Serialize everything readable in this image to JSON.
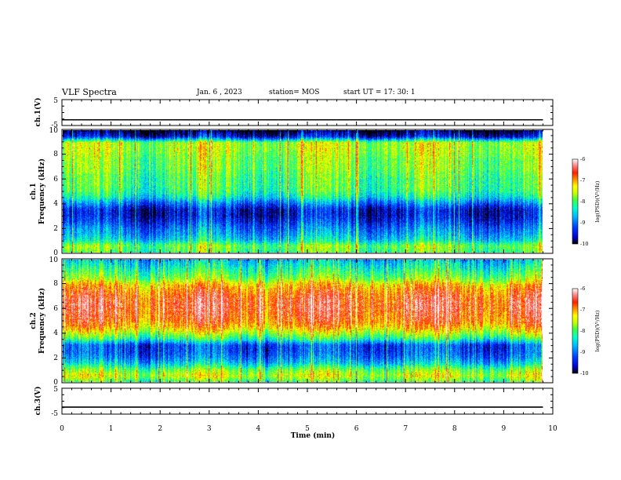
{
  "header": {
    "title": "VLF Spectra",
    "date": "Jan. 6 , 2023",
    "station": "station= MOS",
    "start_ut": "start  UT =   17: 30: 1"
  },
  "chart_data": [
    {
      "type": "line",
      "panel": "ch1-waveform",
      "ylabel": "ch.1(V)",
      "ylim": [
        -5,
        5
      ],
      "yticks": [
        "5",
        "-5"
      ],
      "x": [
        0,
        9.8
      ],
      "values": [
        -2.8,
        -2.8
      ],
      "line_color": "#000000"
    },
    {
      "type": "heatmap",
      "panel": "ch1-spectrogram",
      "ylabel": "ch.1\nFrequency (kHz)",
      "ylim": [
        0,
        10
      ],
      "yticks": [
        "0",
        "2",
        "4",
        "6",
        "8",
        "10"
      ],
      "xlim": [
        0,
        9.8
      ],
      "profile_freq_khz": [
        0,
        0.5,
        1,
        1.5,
        2,
        2.5,
        3,
        3.5,
        4,
        4.5,
        5,
        5.5,
        6,
        6.5,
        7,
        7.5,
        8,
        8.5,
        9,
        9.5,
        10
      ],
      "profile_log_psd": [
        -8,
        -7.8,
        -8.5,
        -8.8,
        -9,
        -9.3,
        -9.5,
        -9.5,
        -9,
        -8.4,
        -8.1,
        -8,
        -8,
        -7.9,
        -7.8,
        -7.8,
        -7.7,
        -7.6,
        -7.6,
        -9.5,
        -10
      ],
      "colorbar": {
        "label": "log(PSD)(V²/Hz)",
        "ticks": [
          "-6",
          "-7",
          "-8",
          "-9",
          "-10"
        ],
        "range": [
          -10,
          -6
        ]
      }
    },
    {
      "type": "heatmap",
      "panel": "ch2-spectrogram",
      "ylabel": "ch.2\nFrequency (kHz)",
      "ylim": [
        0,
        10
      ],
      "yticks": [
        "0",
        "2",
        "4",
        "6",
        "8",
        "10"
      ],
      "xlim": [
        0,
        9.8
      ],
      "profile_freq_khz": [
        0,
        0.5,
        1,
        1.5,
        2,
        2.5,
        3,
        3.5,
        4,
        4.5,
        5,
        5.5,
        6,
        6.5,
        7,
        7.5,
        8,
        8.5,
        9,
        9.5,
        10
      ],
      "profile_log_psd": [
        -8,
        -7.5,
        -7.9,
        -8.6,
        -9,
        -9.2,
        -9.2,
        -8.2,
        -7.6,
        -7.1,
        -6.8,
        -6.7,
        -6.6,
        -6.6,
        -6.7,
        -6.9,
        -7.2,
        -7.8,
        -8.1,
        -8.4,
        -8.7
      ],
      "colorbar": {
        "label": "log(PSD)(V²/Hz)",
        "ticks": [
          "-6",
          "-7",
          "-8",
          "-9",
          "-10"
        ],
        "range": [
          -10,
          -6
        ]
      }
    },
    {
      "type": "line",
      "panel": "ch3-waveform",
      "ylabel": "ch.3(V)",
      "ylim": [
        -5,
        5
      ],
      "yticks": [
        "5",
        "-5"
      ],
      "x": [
        0,
        9.8
      ],
      "values": [
        -2.3,
        -2.3
      ],
      "line_color": "#000000",
      "xlabel": "Time  (min)",
      "xlim": [
        0,
        10
      ],
      "xticks": [
        "0",
        "1",
        "2",
        "3",
        "4",
        "5",
        "6",
        "7",
        "8",
        "9",
        "10"
      ]
    }
  ],
  "colors": {
    "colormap": [
      "#000000",
      "#0000d0",
      "#0040ff",
      "#00b4ff",
      "#00ffd0",
      "#40ff40",
      "#c8ff00",
      "#ffff00",
      "#ff9000",
      "#ff2000",
      "#ff8080",
      "#ffffff"
    ]
  }
}
